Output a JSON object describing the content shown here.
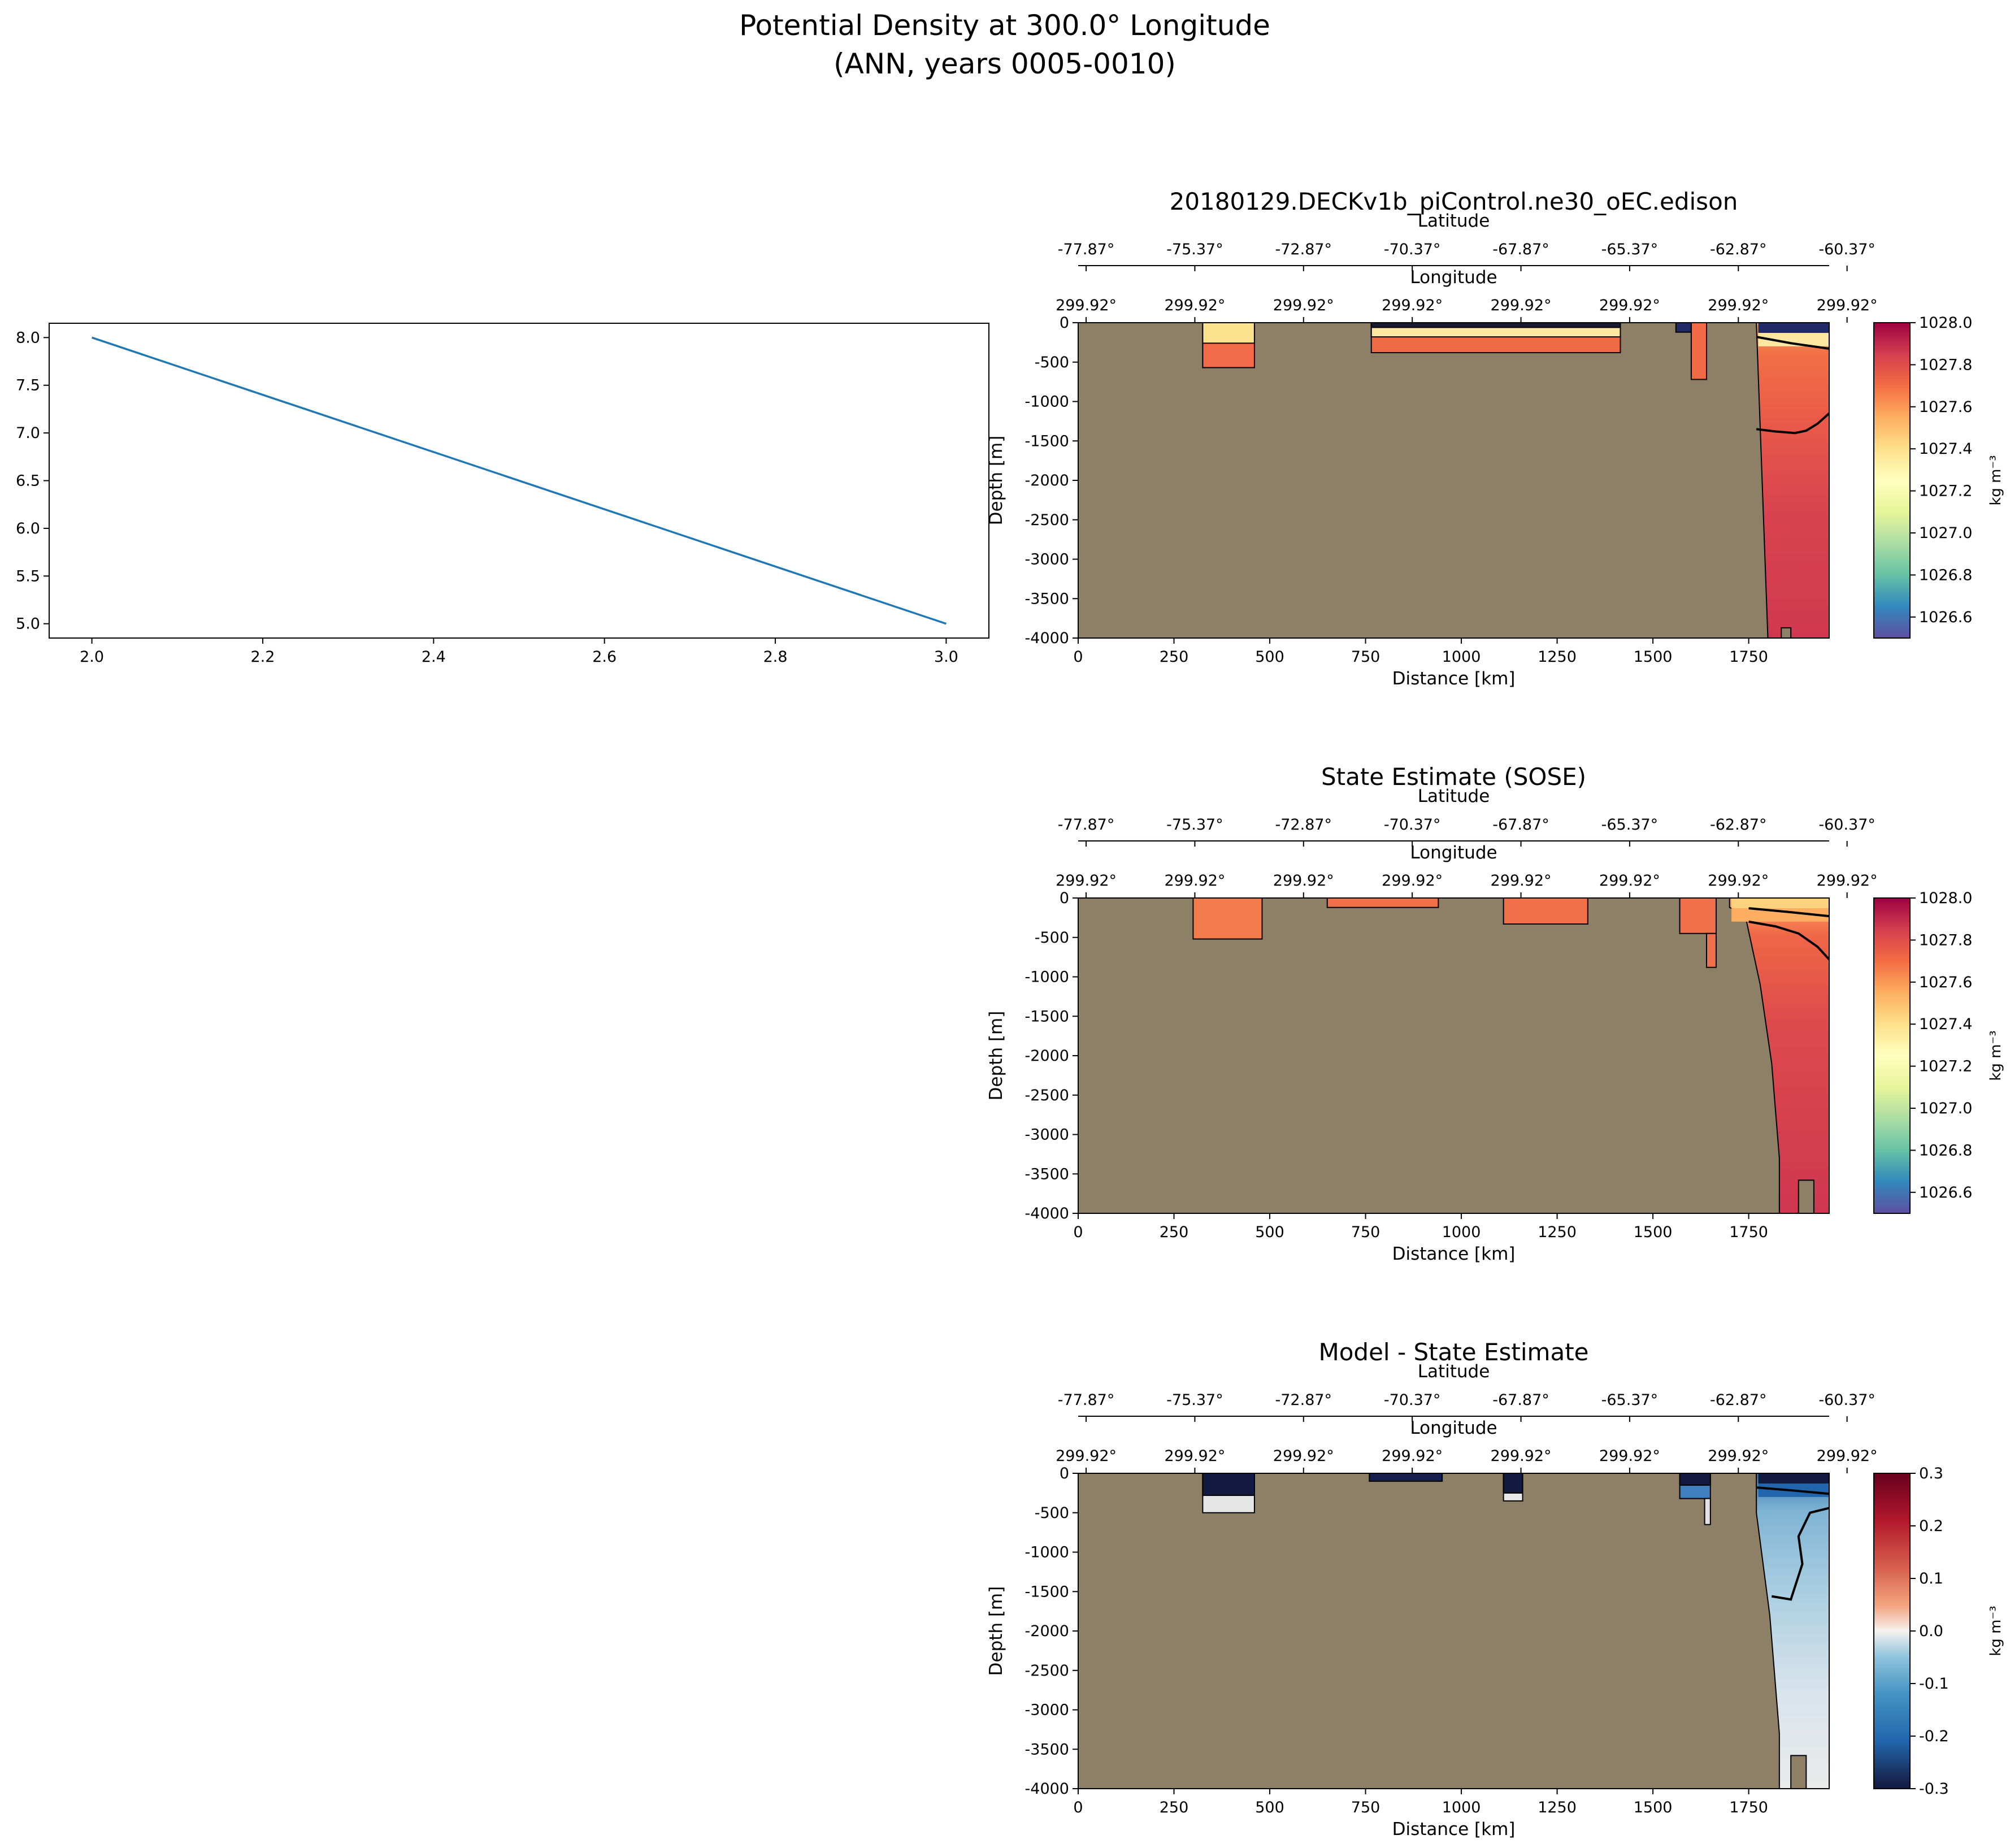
{
  "figure": {
    "title_line1": "Potential Density at 300.0° Longitude",
    "title_line2": "(ANN, years 0005-0010)"
  },
  "colors": {
    "line": "#1f77b4",
    "land": "#8e8066",
    "contour": "#000000"
  },
  "chart_data": [
    {
      "type": "line",
      "x": [
        2.0,
        3.0
      ],
      "y": [
        8.0,
        5.0
      ],
      "xlim": [
        1.95,
        3.05
      ],
      "ylim": [
        4.85,
        8.15
      ],
      "xticks": [
        "2.0",
        "2.2",
        "2.4",
        "2.6",
        "2.8",
        "3.0"
      ],
      "yticks": [
        "5.0",
        "5.5",
        "6.0",
        "6.5",
        "7.0",
        "7.5",
        "8.0"
      ]
    },
    {
      "type": "heatmap",
      "title": "20180129.DECKv1b_piControl.ne30_oEC.edison",
      "xlabel": "Distance [km]",
      "ylabel": "Depth [m]",
      "xlim": [
        0,
        1960
      ],
      "ylim": [
        -4000,
        0
      ],
      "xticks": [
        "0",
        "250",
        "500",
        "750",
        "1000",
        "1250",
        "1500",
        "1750"
      ],
      "yticks": [
        "0",
        "-500",
        "-1000",
        "-1500",
        "-2000",
        "-2500",
        "-3000",
        "-3500",
        "-4000"
      ],
      "lat_label": "Latitude",
      "lat_ticks": [
        "-77.87°",
        "-75.37°",
        "-72.87°",
        "-70.37°",
        "-67.87°",
        "-65.37°",
        "-62.87°",
        "-60.37°"
      ],
      "lon_label": "Longitude",
      "lon_ticks": [
        "299.92°",
        "299.92°",
        "299.92°",
        "299.92°",
        "299.92°",
        "299.92°",
        "299.92°",
        "299.92°"
      ],
      "colorbar": {
        "label": "kg m⁻³",
        "range": [
          1026.5,
          1028.0
        ],
        "ticks": [
          "1028.0",
          "1027.8",
          "1027.6",
          "1027.4",
          "1027.2",
          "1027.0",
          "1026.8",
          "1026.6"
        ],
        "colormap": "Spectral_r"
      }
    },
    {
      "type": "heatmap",
      "title": "State Estimate (SOSE)",
      "xlabel": "Distance [km]",
      "ylabel": "Depth [m]",
      "xlim": [
        0,
        1960
      ],
      "ylim": [
        -4000,
        0
      ],
      "xticks": [
        "0",
        "250",
        "500",
        "750",
        "1000",
        "1250",
        "1500",
        "1750"
      ],
      "yticks": [
        "0",
        "-500",
        "-1000",
        "-1500",
        "-2000",
        "-2500",
        "-3000",
        "-3500",
        "-4000"
      ],
      "lat_label": "Latitude",
      "lat_ticks": [
        "-77.87°",
        "-75.37°",
        "-72.87°",
        "-70.37°",
        "-67.87°",
        "-65.37°",
        "-62.87°",
        "-60.37°"
      ],
      "lon_label": "Longitude",
      "lon_ticks": [
        "299.92°",
        "299.92°",
        "299.92°",
        "299.92°",
        "299.92°",
        "299.92°",
        "299.92°",
        "299.92°"
      ],
      "colorbar": {
        "label": "kg m⁻³",
        "range": [
          1026.5,
          1028.0
        ],
        "ticks": [
          "1028.0",
          "1027.8",
          "1027.6",
          "1027.4",
          "1027.2",
          "1027.0",
          "1026.8",
          "1026.6"
        ],
        "colormap": "Spectral_r"
      }
    },
    {
      "type": "heatmap",
      "title": "Model - State Estimate",
      "xlabel": "Distance [km]",
      "ylabel": "Depth [m]",
      "xlim": [
        0,
        1960
      ],
      "ylim": [
        -4000,
        0
      ],
      "xticks": [
        "0",
        "250",
        "500",
        "750",
        "1000",
        "1250",
        "1500",
        "1750"
      ],
      "yticks": [
        "0",
        "-500",
        "-1000",
        "-1500",
        "-2000",
        "-2500",
        "-3000",
        "-3500",
        "-4000"
      ],
      "lat_label": "Latitude",
      "lat_ticks": [
        "-77.87°",
        "-75.37°",
        "-72.87°",
        "-70.37°",
        "-67.87°",
        "-65.37°",
        "-62.87°",
        "-60.37°"
      ],
      "lon_label": "Longitude",
      "lon_ticks": [
        "299.92°",
        "299.92°",
        "299.92°",
        "299.92°",
        "299.92°",
        "299.92°",
        "299.92°",
        "299.92°"
      ],
      "colorbar": {
        "label": "kg m⁻³",
        "range": [
          -0.3,
          0.3
        ],
        "ticks": [
          "0.3",
          "0.2",
          "0.1",
          "0.0",
          "-0.1",
          "-0.2",
          "-0.3"
        ],
        "colormap": "RdBu_r"
      }
    }
  ]
}
